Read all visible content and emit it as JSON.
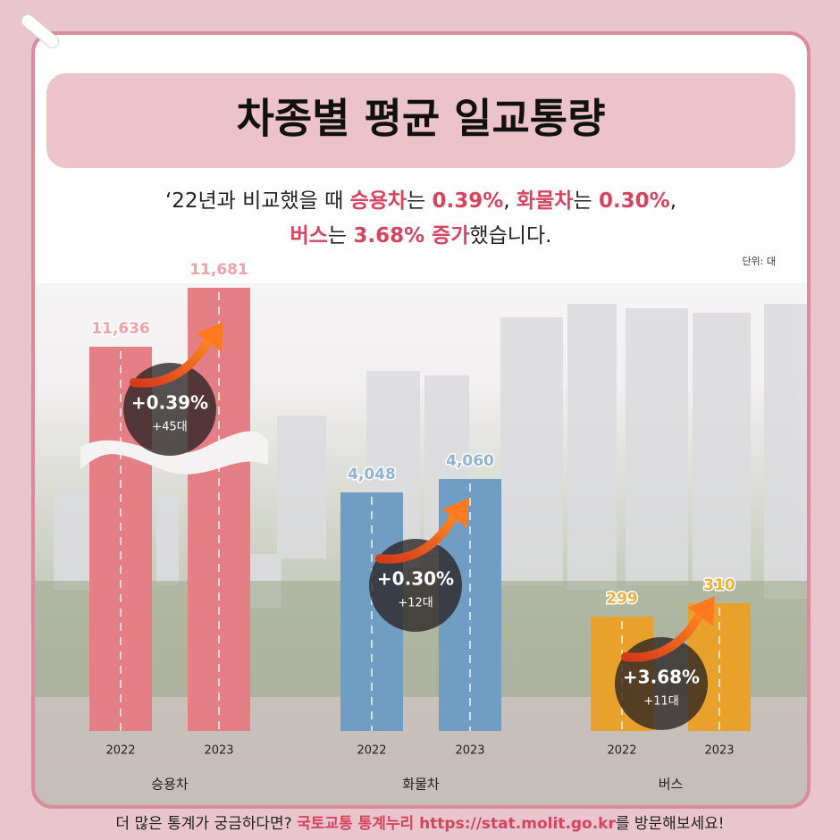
{
  "header": {
    "title": "차종별 평균 일교통량",
    "subtitle": [
      [
        {
          "text": "‘22년과 비교했을 때 "
        },
        {
          "text": "승용차",
          "em": true
        },
        {
          "text": "는 "
        },
        {
          "text": "0.39%",
          "em": true
        },
        {
          "text": ", "
        },
        {
          "text": "화물차",
          "em": true
        },
        {
          "text": "는 "
        },
        {
          "text": "0.30%",
          "em": true
        },
        {
          "text": ","
        }
      ],
      [
        {
          "text": "버스",
          "em": true
        },
        {
          "text": "는 "
        },
        {
          "text": "3.68% 증가",
          "em": true
        },
        {
          "text": "했습니다."
        }
      ]
    ],
    "unit": "단위: 대"
  },
  "chart_data": [
    {
      "type": "bar",
      "xlabel": "승용차",
      "categories": [
        "2022",
        "2023"
      ],
      "values": [
        11636,
        11681
      ],
      "value_labels": [
        "11,636",
        "11,681"
      ],
      "color": "#e47f86",
      "label_color": "#f2a1a6",
      "annotation": "+0.39%",
      "annotation_sub": "+45대"
    },
    {
      "type": "bar",
      "xlabel": "화물차",
      "categories": [
        "2022",
        "2023"
      ],
      "values": [
        4048,
        4060
      ],
      "value_labels": [
        "4,048",
        "4,060"
      ],
      "color": "#6f9dc4",
      "label_color": "#8fb4d4",
      "annotation": "+0.30%",
      "annotation_sub": "+12대"
    },
    {
      "type": "bar",
      "xlabel": "버스",
      "categories": [
        "2022",
        "2023"
      ],
      "values": [
        299,
        310
      ],
      "value_labels": [
        "299",
        "310"
      ],
      "color": "#e8a12a",
      "label_color": "#f0b13c",
      "annotation": "+3.68%",
      "annotation_sub": "+11대"
    }
  ],
  "footer": [
    {
      "text": "더 많은 통계가 궁금하다면? "
    },
    {
      "text": "국토교통 통계누리 https://stat.molit.go.kr",
      "em": true
    },
    {
      "text": "를 방문해보세요!"
    }
  ]
}
